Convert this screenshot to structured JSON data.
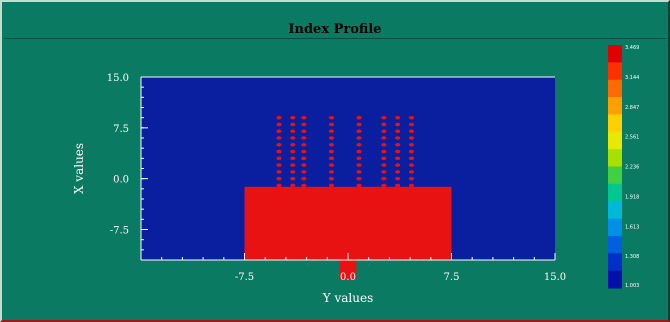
{
  "window": {
    "title": "Index Profile"
  },
  "chart_data": {
    "type": "heatmap",
    "title": "Index Profile",
    "xlabel": "Y values",
    "ylabel": "X values",
    "xlim": [
      -15.0,
      15.0
    ],
    "ylim": [
      -12.0,
      15.0
    ],
    "x_ticks": [
      "-7.5",
      "0.0",
      "7.5",
      "15.0"
    ],
    "x_tick_values": [
      -7.5,
      0.0,
      7.5,
      15.0
    ],
    "y_ticks": [
      "15.0",
      "7.5",
      "0.0",
      "-7.5"
    ],
    "y_tick_values": [
      15.0,
      7.5,
      0.0,
      -7.5
    ],
    "background_color": "#0a1ea0",
    "structure_color": "#e81212",
    "regions": [
      {
        "name": "slab",
        "value": 3.469,
        "x0": -7.5,
        "x1": 7.5,
        "y0": -12.0,
        "y1": -1.2
      },
      {
        "name": "ridge",
        "value": 3.469,
        "x0": -0.6,
        "x1": 0.6,
        "y0": -14.8,
        "y1": -12.0
      }
    ],
    "dot_columns_x": [
      -5.0,
      -4.0,
      -3.2,
      -1.2,
      0.8,
      2.6,
      3.6,
      4.6
    ],
    "dot_rows_y": [
      9.0,
      8.0,
      7.0,
      6.0,
      5.0,
      4.0,
      3.0,
      2.0,
      1.0,
      0.0,
      -1.0
    ],
    "colorbar": {
      "min": 1.0,
      "max": 3.469,
      "labels": [
        "3.469",
        "3.144",
        "2.847",
        "2.561",
        "2.236",
        "1.918",
        "1.613",
        "1.308",
        "1.003"
      ],
      "colors": [
        "#e00000",
        "#ff3000",
        "#ff6a00",
        "#ffa000",
        "#ffd000",
        "#e8e800",
        "#a8e000",
        "#40d040",
        "#00c890",
        "#00b8d8",
        "#0090e8",
        "#0060e0",
        "#0030c8",
        "#0010a8"
      ]
    }
  }
}
